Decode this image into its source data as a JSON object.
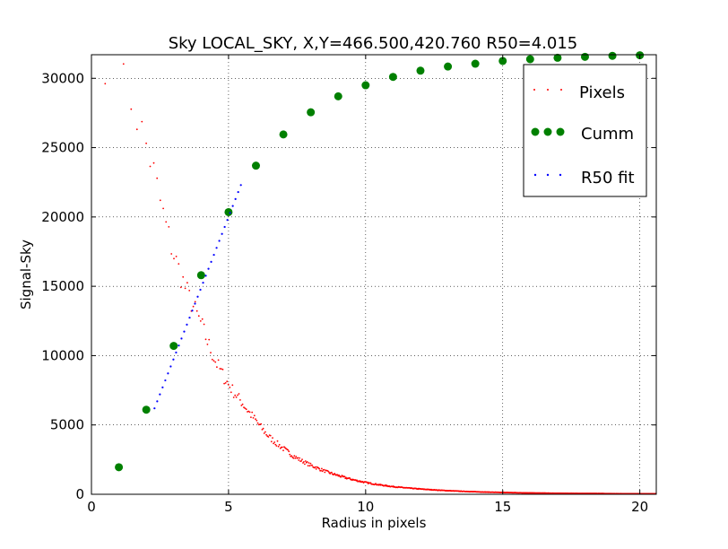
{
  "chart_data": {
    "type": "scatter",
    "title": "Sky LOCAL_SKY, X,Y=466.500,420.760 R50=4.015",
    "xlabel": "Radius in pixels",
    "ylabel": "Signal-Sky",
    "xlim": [
      0,
      20.6
    ],
    "ylim": [
      0,
      31700
    ],
    "xticks": [
      0,
      5,
      10,
      15,
      20
    ],
    "yticks": [
      0,
      5000,
      10000,
      15000,
      20000,
      25000,
      30000
    ],
    "grid": true,
    "legend_position": "top-right",
    "legend": [
      "Pixels",
      "Cumm",
      "R50 fit"
    ],
    "colors": {
      "pixels": "#ff0000",
      "cumm": "#008000",
      "fit": "#0000ff"
    },
    "series": [
      {
        "name": "Cumm",
        "x": [
          1,
          2,
          3,
          4,
          5,
          6,
          7,
          8,
          9,
          10,
          11,
          12,
          13,
          14,
          15,
          16,
          17,
          18,
          19,
          20
        ],
        "y": [
          1950,
          6100,
          10700,
          15800,
          20350,
          23700,
          25950,
          27550,
          28700,
          29500,
          30100,
          30550,
          30850,
          31050,
          31250,
          31380,
          31480,
          31550,
          31620,
          31660
        ]
      },
      {
        "name": "R50 fit",
        "x": [
          2.3,
          5.45
        ],
        "y": [
          6200,
          22300
        ]
      },
      {
        "name": "Pixels",
        "profile": {
          "x": [
            0.5,
            1.0,
            1.5,
            2.0,
            2.3,
            2.7,
            3.0,
            3.5,
            4.0,
            4.5,
            5.0,
            5.5,
            6.0,
            6.5,
            7.0,
            7.5,
            8.0,
            9.0,
            10.0,
            11.0,
            12.0,
            13.0,
            14.0,
            15.0,
            17.0,
            20.6
          ],
          "y": [
            31500,
            30200,
            28300,
            25200,
            23000,
            19500,
            17300,
            14500,
            12300,
            9700,
            7900,
            6600,
            5300,
            4100,
            3300,
            2600,
            2100,
            1350,
            850,
            550,
            380,
            260,
            180,
            130,
            70,
            30
          ]
        }
      }
    ]
  }
}
